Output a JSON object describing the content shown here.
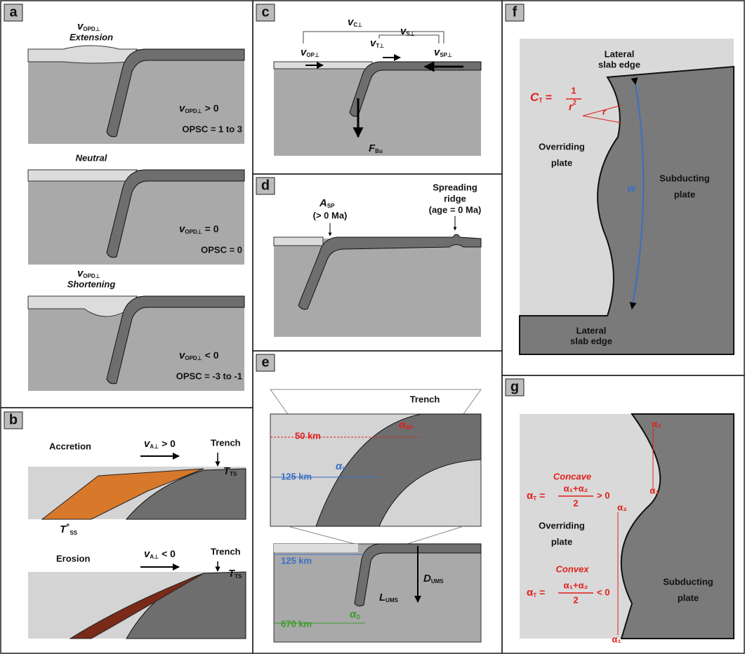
{
  "panels": {
    "a": {
      "label": "a",
      "states": [
        {
          "velocity": {
            "main": "v",
            "sub": "OPD⊥"
          },
          "name": "Extension",
          "condition": {
            "main": "v",
            "sub": "OPD⊥",
            "relation": "> 0"
          },
          "opsc": "OPSC = 1 to 3"
        },
        {
          "name": "Neutral",
          "condition": {
            "main": "v",
            "sub": "OPD⊥",
            "relation": "= 0"
          },
          "opsc": "OPSC = 0"
        },
        {
          "velocity": {
            "main": "v",
            "sub": "OPD⊥"
          },
          "name": "Shortening",
          "condition": {
            "main": "v",
            "sub": "OPD⊥",
            "relation": "< 0"
          },
          "opsc": "OPSC = -3 to -1"
        }
      ]
    },
    "b": {
      "label": "b",
      "accretion": {
        "name": "Accretion",
        "velocity": {
          "main": "v",
          "sub": "A⊥",
          "relation": "> 0"
        },
        "trench": "Trench",
        "tts": {
          "main": "T",
          "sub": "TS"
        },
        "tss": {
          "main": "T",
          "sub": "SS",
          "sup": "+"
        }
      },
      "erosion": {
        "name": "Erosion",
        "velocity": {
          "main": "v",
          "sub": "A⊥",
          "relation": "< 0"
        },
        "trench": "Trench",
        "tts": {
          "main": "T",
          "sub": "TS"
        }
      }
    },
    "c": {
      "label": "c",
      "velocities": [
        {
          "main": "v",
          "sub": "C⊥"
        },
        {
          "main": "v",
          "sub": "S⊥"
        },
        {
          "main": "v",
          "sub": "OP⊥"
        },
        {
          "main": "v",
          "sub": "T⊥"
        },
        {
          "main": "v",
          "sub": "SP⊥"
        }
      ],
      "force": {
        "main": "F",
        "sub": "Bu"
      }
    },
    "d": {
      "label": "d",
      "age": {
        "main": "A",
        "sub": "SP"
      },
      "age_note": "(> 0 Ma)",
      "ridge": [
        "Spreading",
        "ridge",
        "(age = 0 Ma)"
      ]
    },
    "e": {
      "label": "e",
      "trench": "Trench",
      "depths": [
        "50 km",
        "125 km",
        "125 km",
        "670 km"
      ],
      "angles": [
        {
          "main": "α",
          "sub": "SP"
        },
        {
          "main": "α",
          "sub": "S"
        },
        {
          "main": "α",
          "sub": "D"
        }
      ],
      "depth": {
        "main": "D",
        "sub": "UMS"
      },
      "length": {
        "main": "L",
        "sub": "UMS"
      }
    },
    "f": {
      "label": "f",
      "edges": [
        [
          "Lateral",
          "slab edge"
        ],
        [
          "Lateral",
          "slab edge"
        ]
      ],
      "curvature": {
        "main": "C",
        "sub": "T",
        "relation": "=",
        "numerator": "1",
        "denominator": "r",
        "power": "2"
      },
      "radius": "r",
      "overriding": [
        "Overriding",
        "plate"
      ],
      "subducting": [
        "Subducting",
        "plate"
      ],
      "width": "W"
    },
    "g": {
      "label": "g",
      "concave": {
        "name": "Concave",
        "formula": {
          "main": "α",
          "sub": "T",
          "relation": "=",
          "numerator": "α₁+α₂",
          "denominator": "2",
          "result": "> 0"
        }
      },
      "convex": {
        "name": "Convex",
        "formula": {
          "main": "α",
          "sub": "T",
          "relation": "=",
          "numerator": "α₁+α₂",
          "denominator": "2",
          "result": "< 0"
        }
      },
      "overriding": [
        "Overriding",
        "plate"
      ],
      "subducting": [
        "Subducting",
        "plate"
      ],
      "angle_labels": [
        "α₂",
        "α₁",
        "α₂",
        "α₁"
      ]
    }
  }
}
